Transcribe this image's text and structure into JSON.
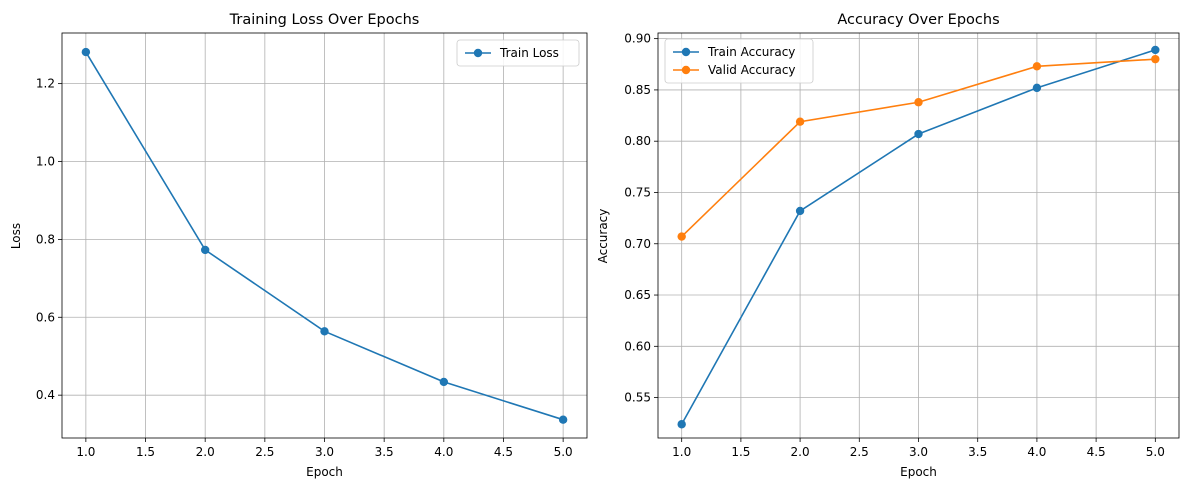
{
  "chart_data": [
    {
      "type": "line",
      "title": "Training Loss Over Epochs",
      "xlabel": "Epoch",
      "ylabel": "Loss",
      "xlim": [
        0.8,
        5.2
      ],
      "ylim": [
        0.29,
        1.33
      ],
      "xticks": [
        1.0,
        1.5,
        2.0,
        2.5,
        3.0,
        3.5,
        4.0,
        4.5,
        5.0
      ],
      "xtick_labels": [
        "1.0",
        "1.5",
        "2.0",
        "2.5",
        "3.0",
        "3.5",
        "4.0",
        "4.5",
        "5.0"
      ],
      "yticks": [
        0.4,
        0.6,
        0.8,
        1.0,
        1.2
      ],
      "ytick_labels": [
        "0.4",
        "0.6",
        "0.8",
        "1.0",
        "1.2"
      ],
      "grid": true,
      "legend_position": "upper-right",
      "x": [
        1,
        2,
        3,
        4,
        5
      ],
      "series": [
        {
          "name": "Train Loss",
          "color": "#1f77b4",
          "values": [
            1.281,
            0.773,
            0.564,
            0.434,
            0.337
          ]
        }
      ]
    },
    {
      "type": "line",
      "title": "Accuracy Over Epochs",
      "xlabel": "Epoch",
      "ylabel": "Accuracy",
      "xlim": [
        0.8,
        5.2
      ],
      "ylim": [
        0.5106,
        0.9055
      ],
      "xticks": [
        1.0,
        1.5,
        2.0,
        2.5,
        3.0,
        3.5,
        4.0,
        4.5,
        5.0
      ],
      "xtick_labels": [
        "1.0",
        "1.5",
        "2.0",
        "2.5",
        "3.0",
        "3.5",
        "4.0",
        "4.5",
        "5.0"
      ],
      "yticks": [
        0.55,
        0.6,
        0.65,
        0.7,
        0.75,
        0.8,
        0.85,
        0.9
      ],
      "ytick_labels": [
        "0.55",
        "0.60",
        "0.65",
        "0.70",
        "0.75",
        "0.80",
        "0.85",
        "0.90"
      ],
      "grid": true,
      "legend_position": "upper-left",
      "x": [
        1,
        2,
        3,
        4,
        5
      ],
      "series": [
        {
          "name": "Train Accuracy",
          "color": "#1f77b4",
          "values": [
            0.524,
            0.732,
            0.807,
            0.852,
            0.889
          ]
        },
        {
          "name": "Valid Accuracy",
          "color": "#ff7f0e",
          "values": [
            0.707,
            0.819,
            0.838,
            0.873,
            0.88
          ]
        }
      ]
    }
  ]
}
